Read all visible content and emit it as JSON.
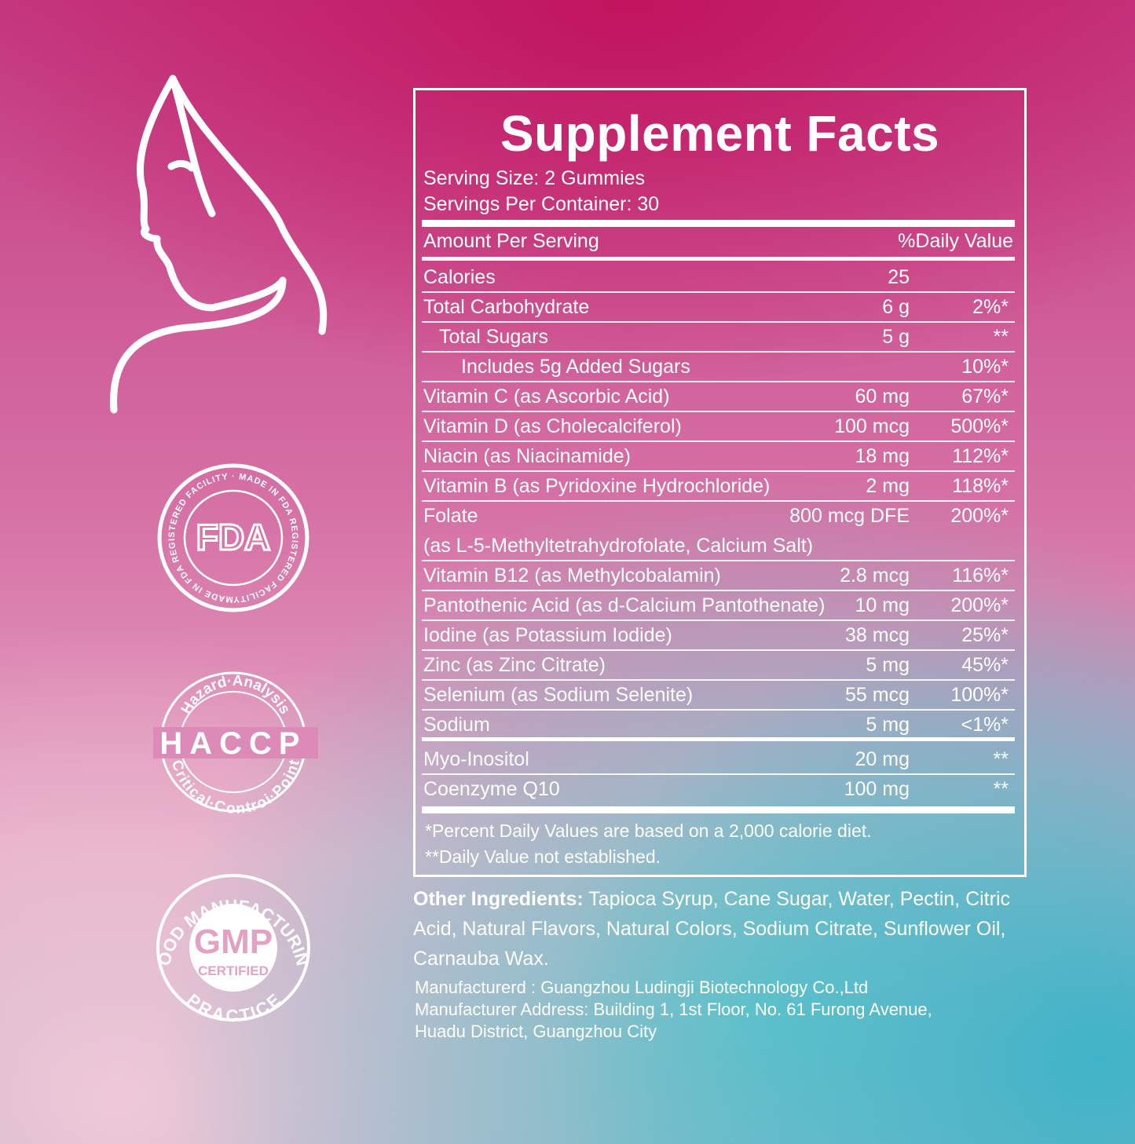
{
  "badges": {
    "fda": {
      "center": "FDA",
      "ring": "MADE IN FDA REGISTERED FACILITY · MADE IN FDA REGISTERED FACILITY ·"
    },
    "haccp": {
      "center": "HACCP",
      "top": "Hazard·Analysis",
      "bottom": "Critical·Controi·Point"
    },
    "gmp": {
      "center": "GMP",
      "sub": "CERTIFIED",
      "top": "GOOD MANUFACTURING",
      "bottom": "PRACTICE"
    }
  },
  "facts": {
    "title": "Supplement Facts",
    "serving_size": "Serving Size: 2 Gummies",
    "servings_per_container": "Servings Per Container: 30",
    "amount_header": "Amount Per Serving",
    "dv_header": "%Daily Value",
    "rows": [
      {
        "name": "Calories",
        "amount": "25",
        "dv": ""
      },
      {
        "name": "Total Carbohydrate",
        "amount": "6 g",
        "dv": "2%*"
      },
      {
        "name": "Total Sugars",
        "amount": "5 g",
        "dv": "**",
        "indent": 1
      },
      {
        "name": "Includes 5g Added Sugars",
        "amount": "",
        "dv": "10%*",
        "indent": 2
      },
      {
        "name": "Vitamin C (as Ascorbic Acid)",
        "amount": "60 mg",
        "dv": "67%*"
      },
      {
        "name": "Vitamin D (as Cholecalciferol)",
        "amount": "100 mcg",
        "dv": "500%*"
      },
      {
        "name": "Niacin (as Niacinamide)",
        "amount": "18 mg",
        "dv": "112%*"
      },
      {
        "name": "Vitamin B (as Pyridoxine Hydrochloride)",
        "amount": "2 mg",
        "dv": "118%*"
      },
      {
        "name": "Folate",
        "name2": "(as L-5-Methyltetrahydrofolate, Calcium Salt)",
        "amount": "800 mcg DFE",
        "dv": "200%*"
      },
      {
        "name": "Vitamin B12 (as Methylcobalamin)",
        "amount": "2.8 mcg",
        "dv": "116%*"
      },
      {
        "name": "Pantothenic Acid (as d-Calcium Pantothenate)",
        "amount": "10 mg",
        "dv": "200%*"
      },
      {
        "name": "Iodine (as Potassium Iodide)",
        "amount": "38 mcg",
        "dv": "25%*"
      },
      {
        "name": "Zinc (as Zinc Citrate)",
        "amount": "5 mg",
        "dv": "45%*"
      },
      {
        "name": "Selenium (as Sodium Selenite)",
        "amount": "55 mcg",
        "dv": "100%*"
      },
      {
        "name": "Sodium",
        "amount": "5 mg",
        "dv": "<1%*"
      }
    ],
    "extra_rows": [
      {
        "name": "Myo-Inositol",
        "amount": "20 mg",
        "dv": "**"
      },
      {
        "name": "Coenzyme Q10",
        "amount": "100 mg",
        "dv": "**"
      }
    ],
    "footnote1": "*Percent Daily Values are based on a 2,000 calorie diet.",
    "footnote2": "**Daily Value not established."
  },
  "other_ingredients": {
    "label": "Other Ingredients:",
    "text": " Tapioca Syrup, Cane Sugar, Water, Pectin, Citric Acid, Natural Flavors, Natural Colors, Sodium Citrate, Sunflower Oil, Carnauba Wax."
  },
  "manufacturer": {
    "line1": "Manufacturerd : Guangzhou Ludingji Biotechnology Co.,Ltd",
    "line2": "Manufacturer Address: Building 1, 1st Floor, No. 61 Furong Avenue,",
    "line3": "Huadu District, Guangzhou City"
  }
}
